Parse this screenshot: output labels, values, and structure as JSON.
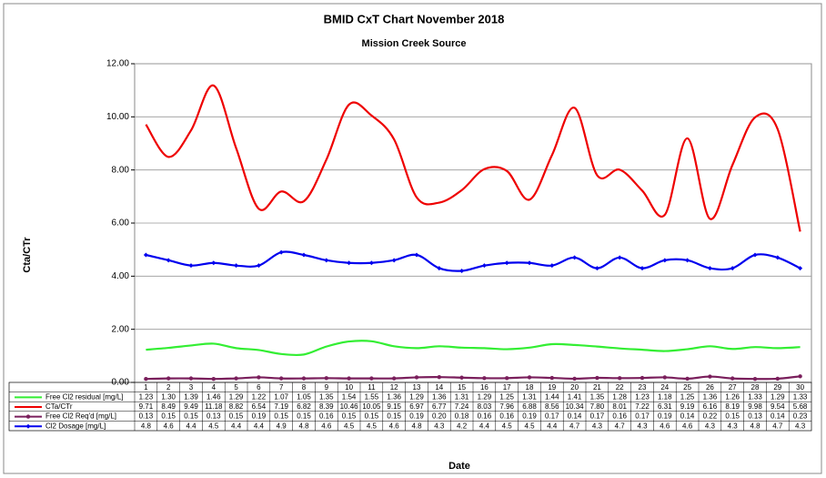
{
  "chart_data": {
    "type": "line",
    "title": "BMID CxT Chart November 2018",
    "subtitle": "Mission Creek Source",
    "y_label": "Cta/CTr",
    "x_label": "Date",
    "categories": [
      "1",
      "2",
      "3",
      "4",
      "5",
      "6",
      "7",
      "8",
      "9",
      "10",
      "11",
      "12",
      "13",
      "14",
      "15",
      "16",
      "17",
      "18",
      "19",
      "20",
      "21",
      "22",
      "23",
      "24",
      "25",
      "26",
      "27",
      "28",
      "29",
      "30"
    ],
    "ylim": [
      0,
      12
    ],
    "yticks": [
      {
        "value": 0,
        "label": "0.00"
      },
      {
        "value": 2,
        "label": "2.00"
      },
      {
        "value": 4,
        "label": "4.00"
      },
      {
        "value": 6,
        "label": "6.00"
      },
      {
        "value": 8,
        "label": "8.00"
      },
      {
        "value": 10,
        "label": "10.00"
      },
      {
        "value": 12,
        "label": "12.00"
      }
    ],
    "grid": true,
    "series": [
      {
        "name": "Free Cl2 residual [mg/L]",
        "color": "#33ee33",
        "marker": "none",
        "values": [
          1.23,
          1.3,
          1.39,
          1.46,
          1.29,
          1.22,
          1.07,
          1.05,
          1.35,
          1.54,
          1.55,
          1.36,
          1.29,
          1.36,
          1.31,
          1.29,
          1.25,
          1.31,
          1.44,
          1.41,
          1.35,
          1.28,
          1.23,
          1.18,
          1.25,
          1.36,
          1.26,
          1.33,
          1.29,
          1.33
        ],
        "value_labels": [
          "1.23",
          "1.30",
          "1.39",
          "1.46",
          "1.29",
          "1.22",
          "1.07",
          "1.05",
          "1.35",
          "1.54",
          "1.55",
          "1.36",
          "1.29",
          "1.36",
          "1.31",
          "1.29",
          "1.25",
          "1.31",
          "1.44",
          "1.41",
          "1.35",
          "1.28",
          "1.23",
          "1.18",
          "1.25",
          "1.36",
          "1.26",
          "1.33",
          "1.29",
          "1.33"
        ]
      },
      {
        "name": "CTa/CTr",
        "color": "#ee0000",
        "marker": "none",
        "values": [
          9.71,
          8.49,
          9.49,
          11.18,
          8.82,
          6.54,
          7.19,
          6.82,
          8.39,
          10.46,
          10.05,
          9.15,
          6.97,
          6.77,
          7.24,
          8.03,
          7.96,
          6.88,
          8.56,
          10.34,
          7.8,
          8.01,
          7.22,
          6.31,
          9.19,
          6.16,
          8.19,
          9.98,
          9.54,
          5.68
        ],
        "value_labels": [
          "9.71",
          "8.49",
          "9.49",
          "11.18",
          "8.82",
          "6.54",
          "7.19",
          "6.82",
          "8.39",
          "10.46",
          "10.05",
          "9.15",
          "6.97",
          "6.77",
          "7.24",
          "8.03",
          "7.96",
          "6.88",
          "8.56",
          "10.34",
          "7.80",
          "8.01",
          "7.22",
          "6.31",
          "9.19",
          "6.16",
          "8.19",
          "9.98",
          "9.54",
          "5.68"
        ]
      },
      {
        "name": "Free Cl2 Req'd [mg/L]",
        "color": "#7a1f5c",
        "marker": "circle",
        "values": [
          0.13,
          0.15,
          0.15,
          0.13,
          0.15,
          0.19,
          0.15,
          0.15,
          0.16,
          0.15,
          0.15,
          0.15,
          0.19,
          0.2,
          0.18,
          0.16,
          0.16,
          0.19,
          0.17,
          0.14,
          0.17,
          0.16,
          0.17,
          0.19,
          0.14,
          0.22,
          0.15,
          0.13,
          0.14,
          0.23
        ],
        "value_labels": [
          "0.13",
          "0.15",
          "0.15",
          "0.13",
          "0.15",
          "0.19",
          "0.15",
          "0.15",
          "0.16",
          "0.15",
          "0.15",
          "0.15",
          "0.19",
          "0.20",
          "0.18",
          "0.16",
          "0.16",
          "0.19",
          "0.17",
          "0.14",
          "0.17",
          "0.16",
          "0.17",
          "0.19",
          "0.14",
          "0.22",
          "0.15",
          "0.13",
          "0.14",
          "0.23"
        ]
      },
      {
        "name": "Cl2 Dosage [mg/L]",
        "color": "#0000ee",
        "marker": "diamond",
        "values": [
          4.8,
          4.6,
          4.4,
          4.5,
          4.4,
          4.4,
          4.9,
          4.8,
          4.6,
          4.5,
          4.5,
          4.6,
          4.8,
          4.3,
          4.2,
          4.4,
          4.5,
          4.5,
          4.4,
          4.7,
          4.3,
          4.7,
          4.3,
          4.6,
          4.6,
          4.3,
          4.3,
          4.8,
          4.7,
          4.3
        ]
      }
    ]
  }
}
